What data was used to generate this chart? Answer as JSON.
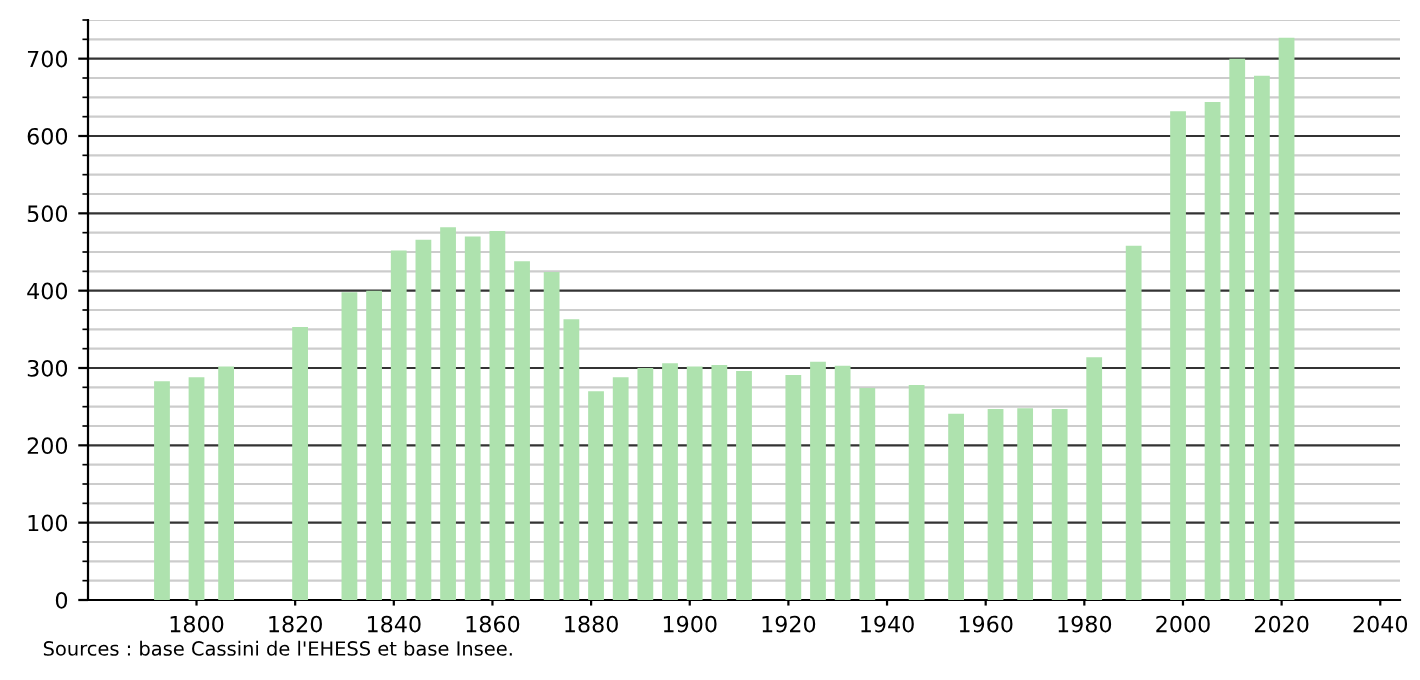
{
  "chart_data": {
    "type": "bar",
    "x": [
      1793,
      1800,
      1806,
      1821,
      1831,
      1836,
      1841,
      1846,
      1851,
      1856,
      1861,
      1866,
      1872,
      1876,
      1881,
      1886,
      1891,
      1896,
      1901,
      1906,
      1911,
      1921,
      1926,
      1931,
      1936,
      1946,
      1954,
      1962,
      1968,
      1975,
      1982,
      1990,
      1999,
      2006,
      2011,
      2016,
      2021
    ],
    "values": [
      283,
      288,
      302,
      353,
      398,
      400,
      452,
      466,
      482,
      470,
      477,
      438,
      424,
      363,
      270,
      288,
      300,
      306,
      302,
      304,
      296,
      291,
      308,
      303,
      274,
      278,
      241,
      247,
      248,
      247,
      314,
      458,
      632,
      644,
      700,
      678,
      727
    ],
    "color": "#aee2ae",
    "xlim": [
      1778,
      2044
    ],
    "xticks": [
      1800,
      1820,
      1840,
      1860,
      1880,
      1900,
      1920,
      1940,
      1960,
      1980,
      2000,
      2020,
      2040
    ],
    "ylim": [
      0,
      750
    ],
    "yticks": [
      0,
      100,
      200,
      300,
      400,
      500,
      600,
      700
    ],
    "grid": "y",
    "annotations": [
      "Sources : base Cassini de l'EHESS et base Insee."
    ]
  }
}
